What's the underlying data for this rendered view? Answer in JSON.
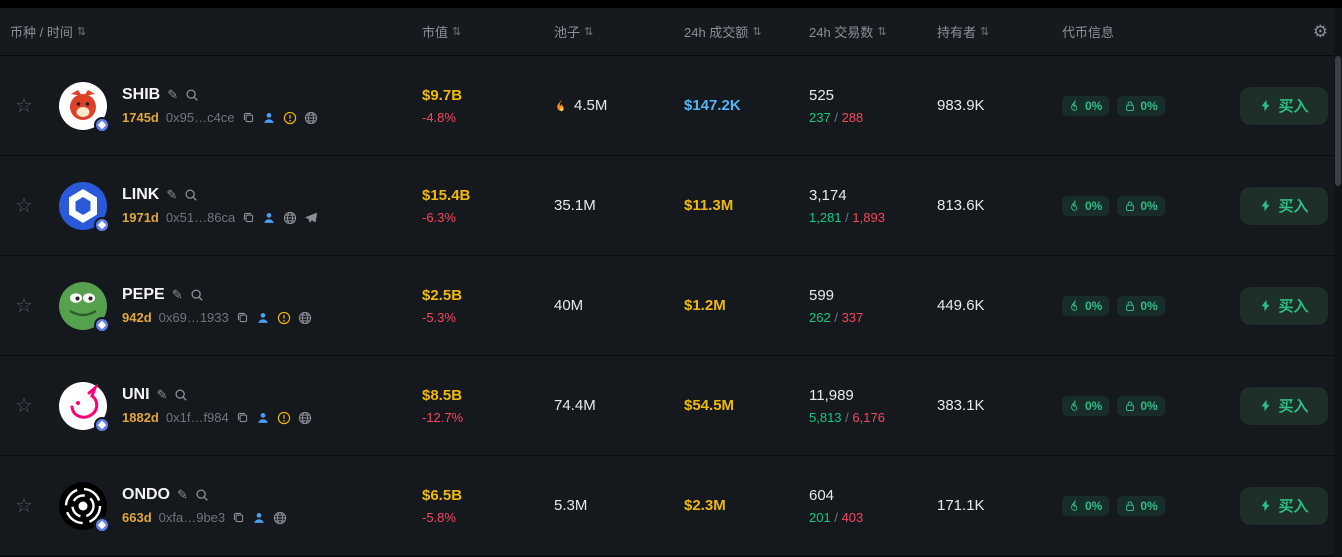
{
  "colors": {
    "accent_yellow": "#f0b90b",
    "red": "#f6465d",
    "green": "#0ecb81",
    "buy_green": "#2ebd85",
    "blue_volume": "#54b6f8"
  },
  "header": {
    "columns": [
      {
        "label": "币种 / 时间",
        "sortable": true
      },
      {
        "label": "市值",
        "sortable": true
      },
      {
        "label": "池子",
        "sortable": true
      },
      {
        "label": "24h 成交额",
        "sortable": true
      },
      {
        "label": "24h 交易数",
        "sortable": true
      },
      {
        "label": "持有者",
        "sortable": true
      },
      {
        "label": "代币信息",
        "sortable": false
      }
    ],
    "settings_icon": "gear-icon"
  },
  "buy_label": "买入",
  "rows": [
    {
      "symbol": "SHIB",
      "age": "1745d",
      "address": "0x95…c4ce",
      "icons": [
        "copy",
        "person",
        "warning",
        "globe"
      ],
      "market_cap": "$9.7B",
      "change": "-4.8%",
      "pool": "4.5M",
      "pool_hot": true,
      "volume": "$147.2K",
      "volume_color": "#54b6f8",
      "tx_total": "525",
      "tx_buy": "237",
      "tx_sell": "288",
      "holders": "983.9K",
      "pills": [
        {
          "icon": "flame",
          "value": "0%"
        },
        {
          "icon": "lock",
          "value": "0%"
        }
      ],
      "avatar": {
        "shape": "shib",
        "bg": "#ffffff",
        "fg": "#e0402a"
      }
    },
    {
      "symbol": "LINK",
      "age": "1971d",
      "address": "0x51…86ca",
      "icons": [
        "copy",
        "person",
        "globe",
        "telegram"
      ],
      "market_cap": "$15.4B",
      "change": "-6.3%",
      "pool": "35.1M",
      "pool_hot": false,
      "volume": "$11.3M",
      "volume_color": "#f0b90b",
      "tx_total": "3,174",
      "tx_buy": "1,281",
      "tx_sell": "1,893",
      "holders": "813.6K",
      "pills": [
        {
          "icon": "flame",
          "value": "0%"
        },
        {
          "icon": "lock",
          "value": "0%"
        }
      ],
      "avatar": {
        "shape": "link",
        "bg": "#2a5ada",
        "fg": "#ffffff"
      }
    },
    {
      "symbol": "PEPE",
      "age": "942d",
      "address": "0x69…1933",
      "icons": [
        "copy",
        "person",
        "warning",
        "globe"
      ],
      "market_cap": "$2.5B",
      "change": "-5.3%",
      "pool": "40M",
      "pool_hot": false,
      "volume": "$1.2M",
      "volume_color": "#f0b90b",
      "tx_total": "599",
      "tx_buy": "262",
      "tx_sell": "337",
      "holders": "449.6K",
      "pills": [
        {
          "icon": "flame",
          "value": "0%"
        },
        {
          "icon": "lock",
          "value": "0%"
        }
      ],
      "avatar": {
        "shape": "pepe",
        "bg": "#55a14e",
        "fg": "#2d5e2a"
      }
    },
    {
      "symbol": "UNI",
      "age": "1882d",
      "address": "0x1f…f984",
      "icons": [
        "copy",
        "person",
        "warning",
        "globe"
      ],
      "market_cap": "$8.5B",
      "change": "-12.7%",
      "pool": "74.4M",
      "pool_hot": false,
      "volume": "$54.5M",
      "volume_color": "#f0b90b",
      "tx_total": "11,989",
      "tx_buy": "5,813",
      "tx_sell": "6,176",
      "holders": "383.1K",
      "pills": [
        {
          "icon": "flame",
          "value": "0%"
        },
        {
          "icon": "lock",
          "value": "0%"
        }
      ],
      "avatar": {
        "shape": "uni",
        "bg": "#ffffff",
        "fg": "#ff007a"
      }
    },
    {
      "symbol": "ONDO",
      "age": "663d",
      "address": "0xfa…9be3",
      "icons": [
        "copy",
        "person",
        "globe"
      ],
      "market_cap": "$6.5B",
      "change": "-5.8%",
      "pool": "5.3M",
      "pool_hot": false,
      "volume": "$2.3M",
      "volume_color": "#f0b90b",
      "tx_total": "604",
      "tx_buy": "201",
      "tx_sell": "403",
      "holders": "171.1K",
      "pills": [
        {
          "icon": "flame",
          "value": "0%"
        },
        {
          "icon": "lock",
          "value": "0%"
        }
      ],
      "avatar": {
        "shape": "ondo",
        "bg": "#000000",
        "fg": "#ffffff"
      }
    }
  ]
}
